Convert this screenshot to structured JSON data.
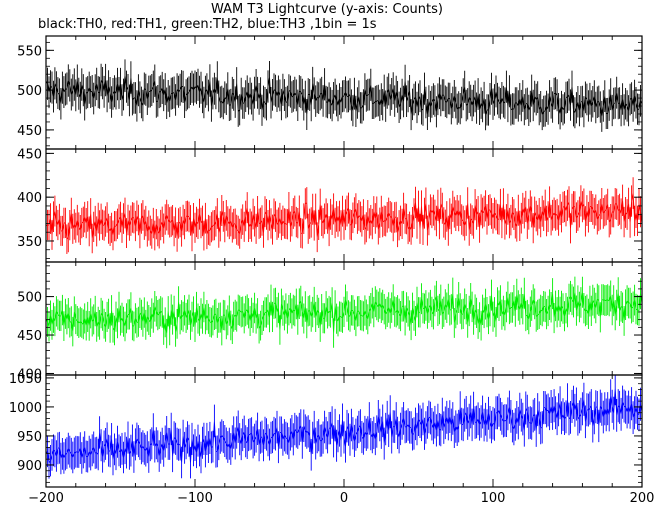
{
  "chart_data": {
    "type": "line",
    "title": "WAM T3 Lightcurve (y-axis: Counts)",
    "subtitle": "black:TH0, red:TH1, green:TH2, blue:TH3 ,1bin = 1s",
    "xlim": [
      -200,
      200
    ],
    "x_ticks": [
      -200,
      -100,
      0,
      100,
      200
    ],
    "x_tick_labels": [
      "−200",
      "−100",
      "0",
      "100",
      "200"
    ],
    "grid": false,
    "panels": [
      {
        "name": "TH0",
        "color": "#000000",
        "ylim": [
          426,
          568
        ],
        "y_ticks": [
          450,
          500,
          550
        ],
        "baseline_start": 500,
        "baseline_end": 480,
        "noise": 22
      },
      {
        "name": "TH1",
        "color": "#ff0000",
        "ylim": [
          326,
          455
        ],
        "y_ticks": [
          350,
          400,
          450
        ],
        "baseline_start": 365,
        "baseline_end": 385,
        "noise": 20
      },
      {
        "name": "TH2",
        "color": "#00ee00",
        "ylim": [
          398,
          545
        ],
        "y_ticks": [
          400,
          450,
          500
        ],
        "baseline_start": 468,
        "baseline_end": 492,
        "noise": 22
      },
      {
        "name": "TH3",
        "color": "#0000ff",
        "ylim": [
          862,
          1055
        ],
        "y_ticks": [
          900,
          950,
          1000,
          1050
        ],
        "baseline_start": 915,
        "baseline_end": 1000,
        "noise": 30
      }
    ]
  }
}
